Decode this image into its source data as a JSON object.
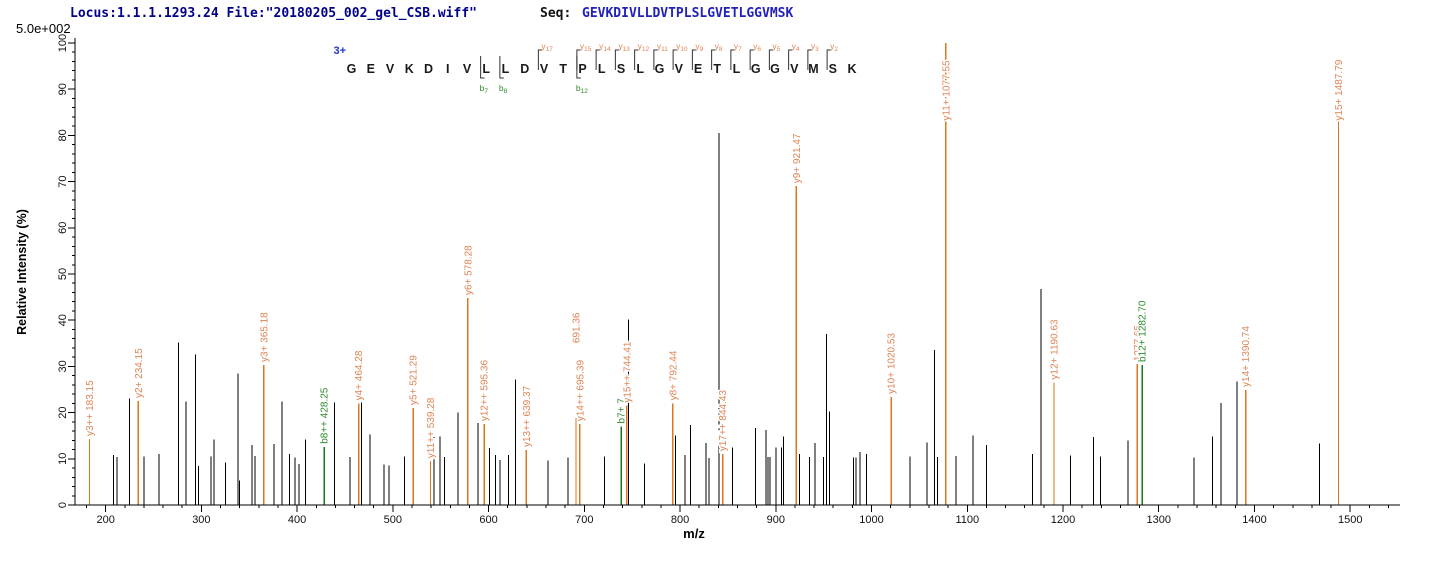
{
  "header": {
    "locus_file": "Locus:1.1.1.1293.24 File:\"20180205_002_gel_CSB.wiff\"",
    "seq_label": "Seq:",
    "sequence": "GEVKDIVLLDVTPLSLGVETLGGVMSK",
    "scale_label": "5.0e+002"
  },
  "annotation": {
    "charge": "3+",
    "residues": "GEVKDIVLLDVTPLSLGVETLGGVMSK",
    "y_ions": [
      {
        "ion": "y",
        "num": 17,
        "after": 10
      },
      {
        "ion": "y",
        "num": 15,
        "after": 12
      },
      {
        "ion": "y",
        "num": 14,
        "after": 13
      },
      {
        "ion": "y",
        "num": 13,
        "after": 14
      },
      {
        "ion": "y",
        "num": 12,
        "after": 15
      },
      {
        "ion": "y",
        "num": 11,
        "after": 16
      },
      {
        "ion": "y",
        "num": 10,
        "after": 17
      },
      {
        "ion": "y",
        "num": 9,
        "after": 18
      },
      {
        "ion": "y",
        "num": 8,
        "after": 19
      },
      {
        "ion": "y",
        "num": 7,
        "after": 20
      },
      {
        "ion": "y",
        "num": 6,
        "after": 21
      },
      {
        "ion": "y",
        "num": 5,
        "after": 22
      },
      {
        "ion": "y",
        "num": 4,
        "after": 23
      },
      {
        "ion": "y",
        "num": 3,
        "after": 24
      },
      {
        "ion": "y",
        "num": 2,
        "after": 25
      }
    ],
    "b_ions": [
      {
        "ion": "b",
        "num": 7,
        "after": 7
      },
      {
        "ion": "b",
        "num": 8,
        "after": 8
      },
      {
        "ion": "b",
        "num": 12,
        "after": 12
      }
    ]
  },
  "colors": {
    "y_line": "#d9781f",
    "y_label": "#de8455",
    "b_line": "#157a15",
    "b_label": "#2e8b2e",
    "charge": "#2233cc",
    "header_navy": "#00008b",
    "sequence_blue": "#2222bb",
    "axis": "#000000"
  },
  "chart_data": {
    "type": "bar",
    "style": "centroid-stick-spectrum",
    "title": "",
    "xlabel": "m/z",
    "ylabel": "Relative Intensity (%)",
    "xlim": [
      168,
      1552
    ],
    "ylim": [
      0,
      100
    ],
    "grid": false,
    "legend": "none",
    "x_ticks": [
      200,
      300,
      400,
      500,
      600,
      700,
      800,
      900,
      1000,
      1100,
      1200,
      1300,
      1400,
      1500
    ],
    "y_ticks": [
      0,
      10,
      20,
      30,
      40,
      50,
      60,
      70,
      80,
      90,
      100
    ],
    "x_minor_step": 20,
    "y_minor_step": 2,
    "peaks": [
      {
        "mz": 183.15,
        "pct": 14.3,
        "ion": "y",
        "label": "y3++ 183.15"
      },
      {
        "mz": 208,
        "pct": 10.8
      },
      {
        "mz": 212,
        "pct": 10.4
      },
      {
        "mz": 225,
        "pct": 23.0
      },
      {
        "mz": 234.15,
        "pct": 22.5,
        "ion": "y",
        "label": "y2+ 234.15"
      },
      {
        "mz": 240,
        "pct": 10.5
      },
      {
        "mz": 256,
        "pct": 11.0
      },
      {
        "mz": 276,
        "pct": 35.2
      },
      {
        "mz": 284,
        "pct": 22.4
      },
      {
        "mz": 294,
        "pct": 32.6
      },
      {
        "mz": 297,
        "pct": 8.4
      },
      {
        "mz": 310,
        "pct": 10.5
      },
      {
        "mz": 313,
        "pct": 14.2
      },
      {
        "mz": 325,
        "pct": 9.2
      },
      {
        "mz": 338,
        "pct": 28.5
      },
      {
        "mz": 340,
        "pct": 5.3
      },
      {
        "mz": 353,
        "pct": 13.0
      },
      {
        "mz": 356,
        "pct": 10.6
      },
      {
        "mz": 365.18,
        "pct": 30.3,
        "ion": "y",
        "label": "y3+ 365.18"
      },
      {
        "mz": 376,
        "pct": 13.2
      },
      {
        "mz": 384,
        "pct": 22.4
      },
      {
        "mz": 392,
        "pct": 11.0
      },
      {
        "mz": 398,
        "pct": 10.3
      },
      {
        "mz": 402,
        "pct": 8.9
      },
      {
        "mz": 409,
        "pct": 14.2
      },
      {
        "mz": 428.25,
        "pct": 12.6,
        "ion": "b",
        "label": "b8++ 428.25"
      },
      {
        "mz": 439,
        "pct": 22.2
      },
      {
        "mz": 455,
        "pct": 10.4
      },
      {
        "mz": 464.28,
        "pct": 22.0,
        "ion": "y",
        "label": "y4+ 464.28"
      },
      {
        "mz": 467,
        "pct": 22.2
      },
      {
        "mz": 476,
        "pct": 15.3
      },
      {
        "mz": 491,
        "pct": 8.8
      },
      {
        "mz": 496,
        "pct": 8.5
      },
      {
        "mz": 512,
        "pct": 10.5
      },
      {
        "mz": 521.29,
        "pct": 21.0,
        "ion": "y",
        "label": "y5+ 521.29"
      },
      {
        "mz": 539.28,
        "pct": 9.5,
        "ion": "y",
        "label": "y11++ 539.28"
      },
      {
        "mz": 543,
        "pct": 14.7
      },
      {
        "mz": 549,
        "pct": 14.8
      },
      {
        "mz": 554,
        "pct": 10.4
      },
      {
        "mz": 568,
        "pct": 20.0
      },
      {
        "mz": 578.28,
        "pct": 44.8,
        "ion": "y",
        "label": "y6+ 578.28"
      },
      {
        "mz": 589,
        "pct": 17.7
      },
      {
        "mz": 595.36,
        "pct": 17.5,
        "ion": "y",
        "label": "y12++ 595.36"
      },
      {
        "mz": 601,
        "pct": 12.3
      },
      {
        "mz": 607,
        "pct": 10.8
      },
      {
        "mz": 612,
        "pct": 9.7
      },
      {
        "mz": 621,
        "pct": 10.8
      },
      {
        "mz": 628,
        "pct": 27.2
      },
      {
        "mz": 639.37,
        "pct": 11.9,
        "ion": "y",
        "label": "y13++ 639.37"
      },
      {
        "mz": 662,
        "pct": 9.6
      },
      {
        "mz": 683,
        "pct": 10.3
      },
      {
        "mz": 691.36,
        "pct": 18.8,
        "ion": "y",
        "label": "691.36",
        "raise": 72
      },
      {
        "mz": 695.39,
        "pct": 17.5,
        "ion": "y",
        "label": "y14++ 695.39"
      },
      {
        "mz": 721,
        "pct": 10.5
      },
      {
        "mz": 738.4,
        "pct": 17.0,
        "ion": "b",
        "label": "b7+ 7"
      },
      {
        "mz": 744.41,
        "pct": 21.5,
        "ion": "y",
        "label": "y15++ 744.41"
      },
      {
        "mz": 746,
        "pct": 40.2
      },
      {
        "mz": 763,
        "pct": 9.0
      },
      {
        "mz": 792.44,
        "pct": 22.0,
        "ion": "y",
        "label": "y8+ 792.44"
      },
      {
        "mz": 795,
        "pct": 15.0
      },
      {
        "mz": 805,
        "pct": 10.8
      },
      {
        "mz": 811,
        "pct": 17.3
      },
      {
        "mz": 827,
        "pct": 13.4
      },
      {
        "mz": 830,
        "pct": 10.2
      },
      {
        "mz": 840.5,
        "pct": 80.5
      },
      {
        "mz": 844.43,
        "pct": 11.0,
        "ion": "y",
        "label": "y17++ 844.43"
      },
      {
        "mz": 855,
        "pct": 12.5
      },
      {
        "mz": 879,
        "pct": 16.7
      },
      {
        "mz": 890,
        "pct": 16.2
      },
      {
        "mz": 892,
        "pct": 10.4
      },
      {
        "mz": 894,
        "pct": 10.4
      },
      {
        "mz": 900,
        "pct": 12.4
      },
      {
        "mz": 906,
        "pct": 12.5
      },
      {
        "mz": 908,
        "pct": 14.8
      },
      {
        "mz": 921.47,
        "pct": 69.0,
        "ion": "y",
        "label": "y9+ 921.47"
      },
      {
        "mz": 925,
        "pct": 11.0
      },
      {
        "mz": 935,
        "pct": 10.4
      },
      {
        "mz": 941,
        "pct": 13.4
      },
      {
        "mz": 950,
        "pct": 10.4
      },
      {
        "mz": 953,
        "pct": 37.0
      },
      {
        "mz": 956,
        "pct": 20.2
      },
      {
        "mz": 981,
        "pct": 10.3
      },
      {
        "mz": 984,
        "pct": 10.3
      },
      {
        "mz": 988,
        "pct": 11.5
      },
      {
        "mz": 995,
        "pct": 11.0
      },
      {
        "mz": 1020.53,
        "pct": 23.4,
        "ion": "y",
        "label": "y10+ 1020.53"
      },
      {
        "mz": 1040,
        "pct": 10.5
      },
      {
        "mz": 1058,
        "pct": 13.5
      },
      {
        "mz": 1066,
        "pct": 33.5
      },
      {
        "mz": 1069,
        "pct": 10.4
      },
      {
        "mz": 1077.55,
        "pct": 100.0,
        "ion": "y",
        "label": "y11+ 1077.55"
      },
      {
        "mz": 1088,
        "pct": 10.6
      },
      {
        "mz": 1106,
        "pct": 15.0
      },
      {
        "mz": 1120,
        "pct": 13.0
      },
      {
        "mz": 1168,
        "pct": 11.0
      },
      {
        "mz": 1177,
        "pct": 46.8
      },
      {
        "mz": 1190.63,
        "pct": 26.5,
        "ion": "y",
        "label": "y12+ 1190.63"
      },
      {
        "mz": 1208,
        "pct": 10.7
      },
      {
        "mz": 1232,
        "pct": 14.7
      },
      {
        "mz": 1239,
        "pct": 10.5
      },
      {
        "mz": 1268,
        "pct": 14.0
      },
      {
        "mz": 1277.65,
        "pct": 30.5,
        "ion": "y",
        "label": "1277.65"
      },
      {
        "mz": 1282.7,
        "pct": 30.3,
        "ion": "b",
        "label": "b12+ 1282.70"
      },
      {
        "mz": 1337,
        "pct": 10.3
      },
      {
        "mz": 1356,
        "pct": 14.8
      },
      {
        "mz": 1365,
        "pct": 22.1
      },
      {
        "mz": 1382,
        "pct": 26.7
      },
      {
        "mz": 1390.74,
        "pct": 24.9,
        "ion": "y",
        "label": "y14+ 1390.74"
      },
      {
        "mz": 1468,
        "pct": 13.3
      },
      {
        "mz": 1487.79,
        "pct": 86.0,
        "ion": "y",
        "label": "y15+ 1487.79"
      }
    ]
  }
}
